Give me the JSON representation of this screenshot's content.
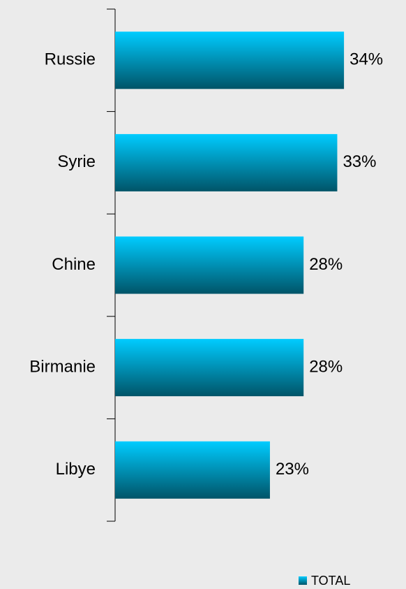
{
  "chart_data": {
    "type": "bar",
    "orientation": "horizontal",
    "categories": [
      "Russie",
      "Syrie",
      "Chine",
      "Birmanie",
      "Libye"
    ],
    "series": [
      {
        "name": "TOTAL",
        "color": "#00ccff",
        "values": [
          34,
          33,
          28,
          28,
          23
        ],
        "value_labels": [
          "34%",
          "33%",
          "28%",
          "28%",
          "23%"
        ]
      }
    ],
    "legend": "bottom-right"
  }
}
